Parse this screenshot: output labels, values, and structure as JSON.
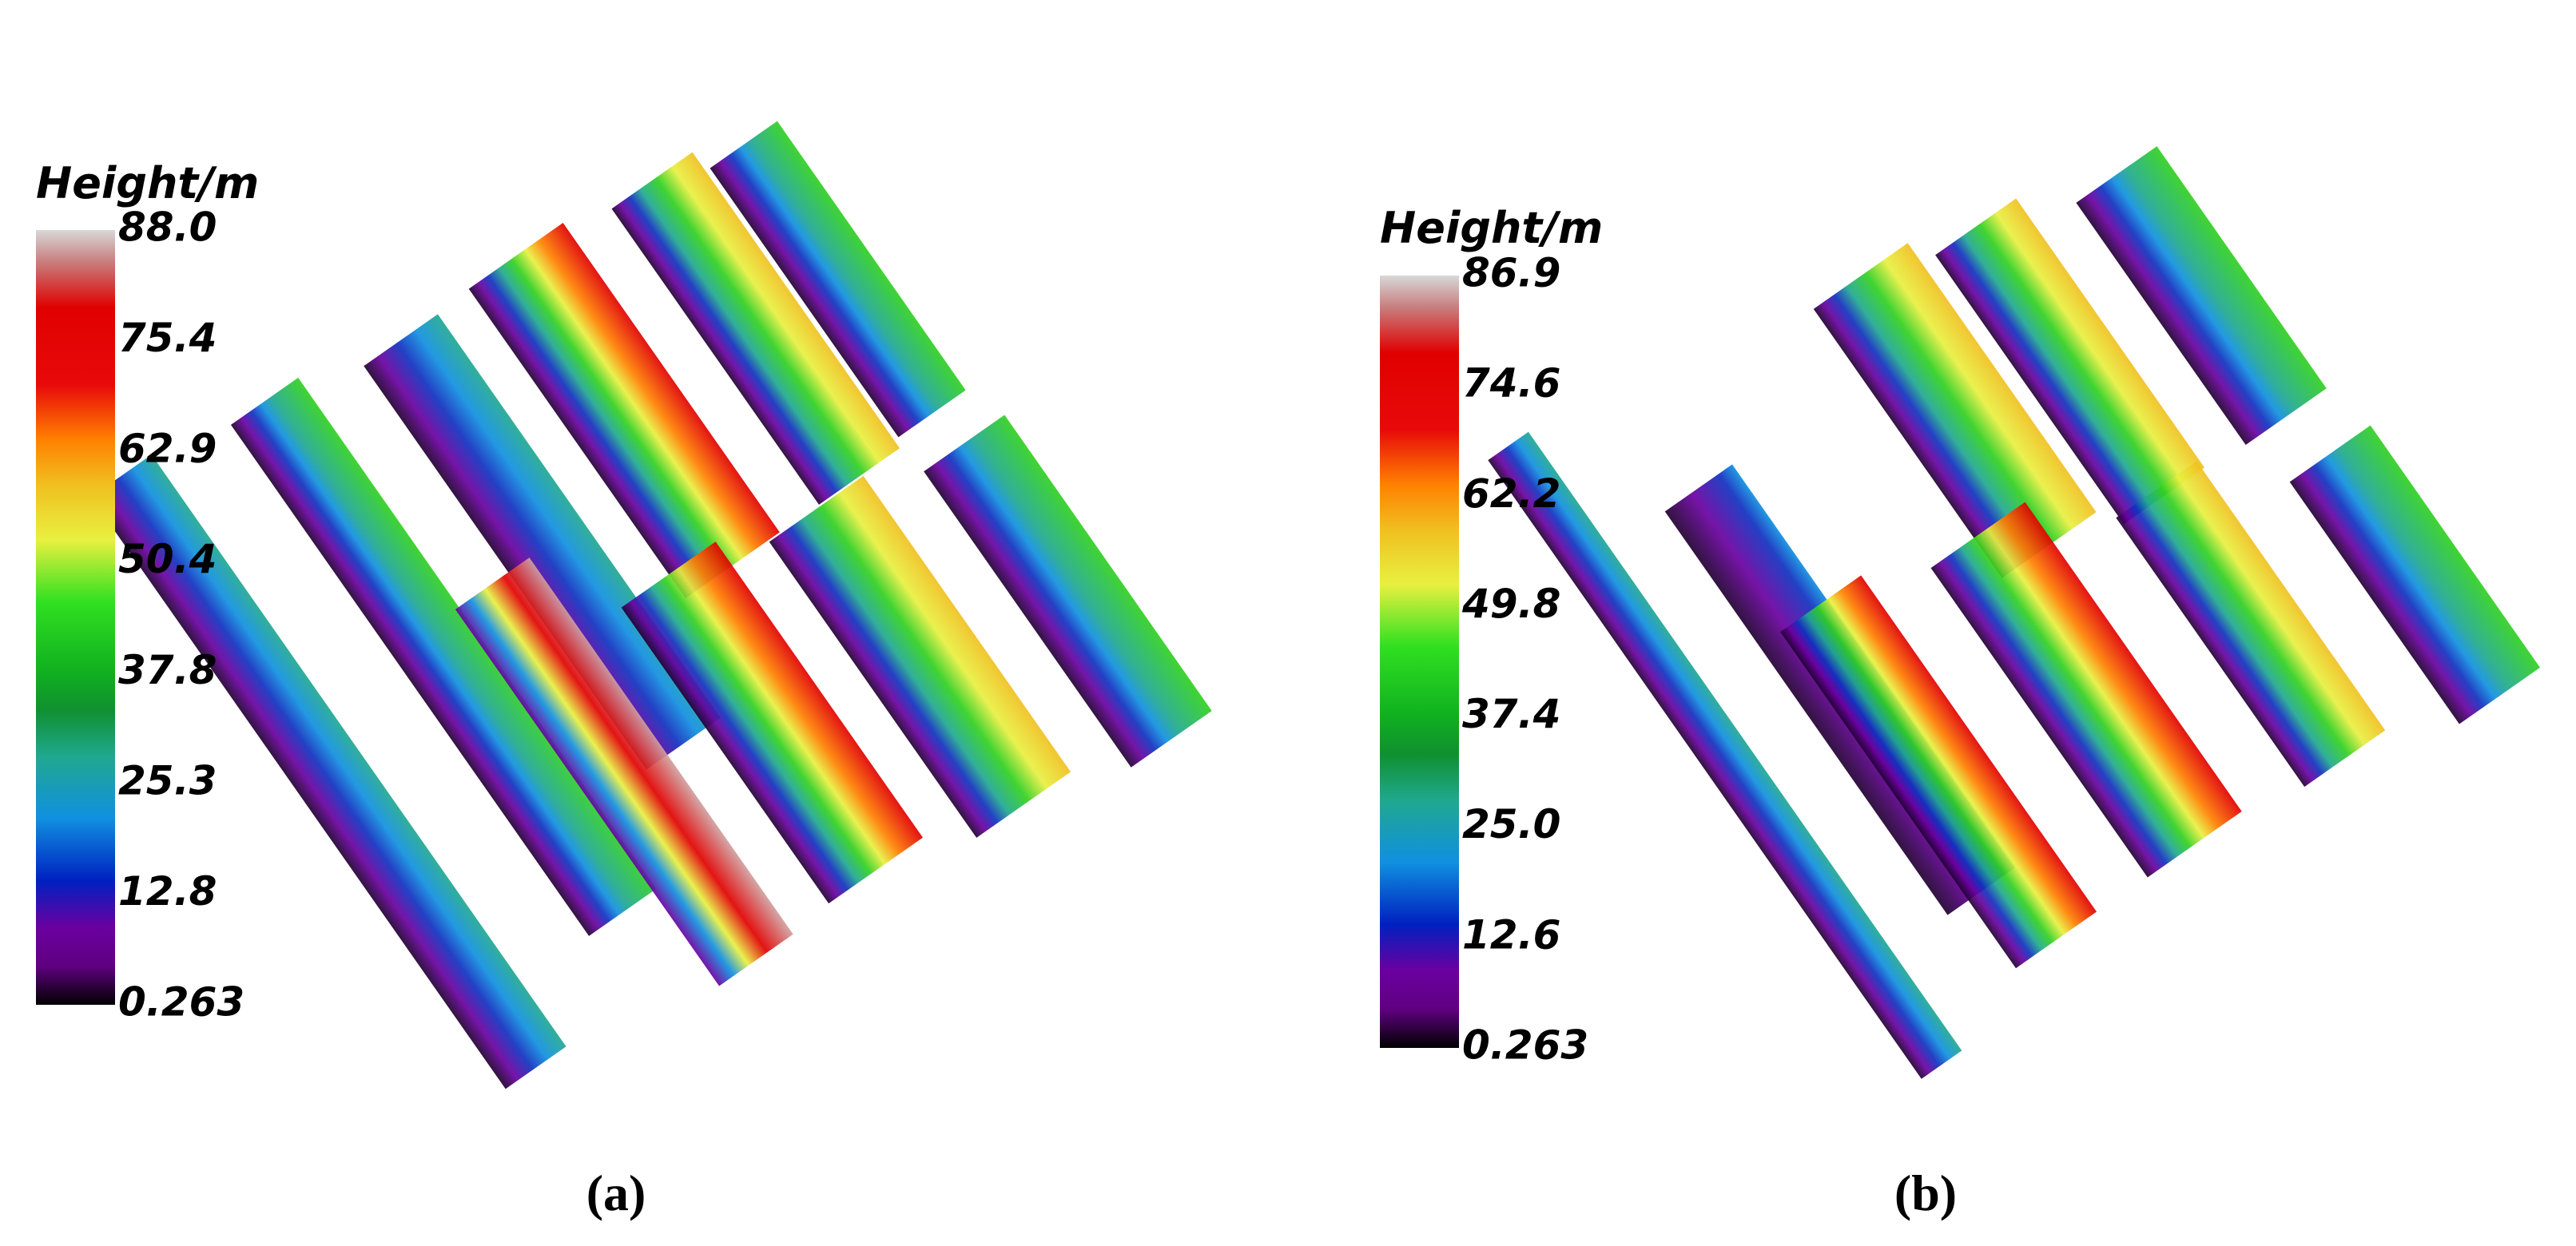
{
  "panels": [
    {
      "colorbar": {
        "title": "Height/m",
        "ticks": [
          "88.0",
          "75.4",
          "62.9",
          "50.4",
          "37.8",
          "25.3",
          "12.8",
          "0.263"
        ]
      },
      "caption": "(a)"
    },
    {
      "colorbar": {
        "title": "Height/m",
        "ticks": [
          "86.9",
          "74.6",
          "62.2",
          "49.8",
          "37.4",
          "25.0",
          "12.6",
          "0.263"
        ]
      },
      "caption": "(b)"
    }
  ]
}
